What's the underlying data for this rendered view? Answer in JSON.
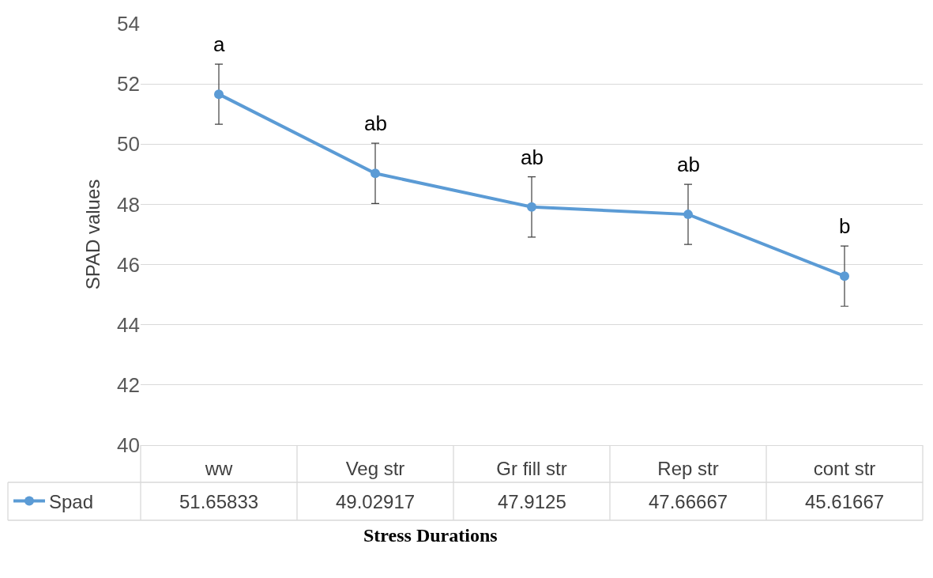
{
  "chart_data": {
    "type": "line",
    "xlabel": "Stress Durations",
    "ylabel": "SPAD values",
    "categories": [
      "ww",
      "Veg str",
      "Gr fill str",
      "Rep str",
      "cont str"
    ],
    "series": [
      {
        "name": "Spad",
        "color": "#5b9bd5",
        "values": [
          51.65833,
          49.02917,
          47.9125,
          47.66667,
          45.61667
        ],
        "errors": [
          1,
          1,
          1,
          1,
          1
        ]
      }
    ],
    "ylim": [
      40,
      54
    ],
    "yticks": [
      40,
      42,
      44,
      46,
      48,
      50,
      52,
      54
    ],
    "grid": "y",
    "marker": "circle",
    "line_style": "solid",
    "legend": "bottom left",
    "data_labels": true,
    "annotations": [
      "a",
      "ab",
      "ab",
      "ab",
      "b"
    ]
  }
}
